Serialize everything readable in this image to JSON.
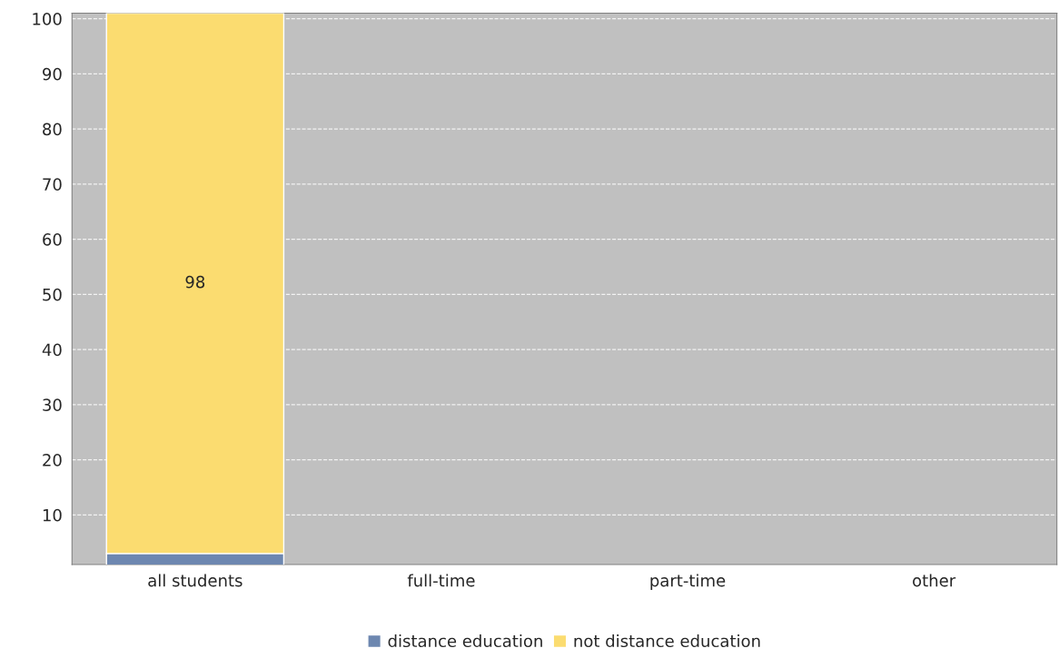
{
  "chart_data": {
    "type": "bar",
    "stacked": true,
    "categories": [
      "all students",
      "full-time",
      "part-time",
      "other"
    ],
    "series": [
      {
        "name": "distance education",
        "color": "#6d87b0",
        "values": [
          3,
          null,
          null,
          null
        ]
      },
      {
        "name": "not distance education",
        "color": "#fbdc70",
        "values": [
          98,
          null,
          null,
          null
        ],
        "value_labels": [
          "98",
          null,
          null,
          null
        ]
      }
    ],
    "ylim": [
      1,
      101
    ],
    "yticks": [
      10,
      20,
      30,
      40,
      50,
      60,
      70,
      80,
      90,
      100
    ],
    "grid": "y",
    "legend": "bottom"
  }
}
